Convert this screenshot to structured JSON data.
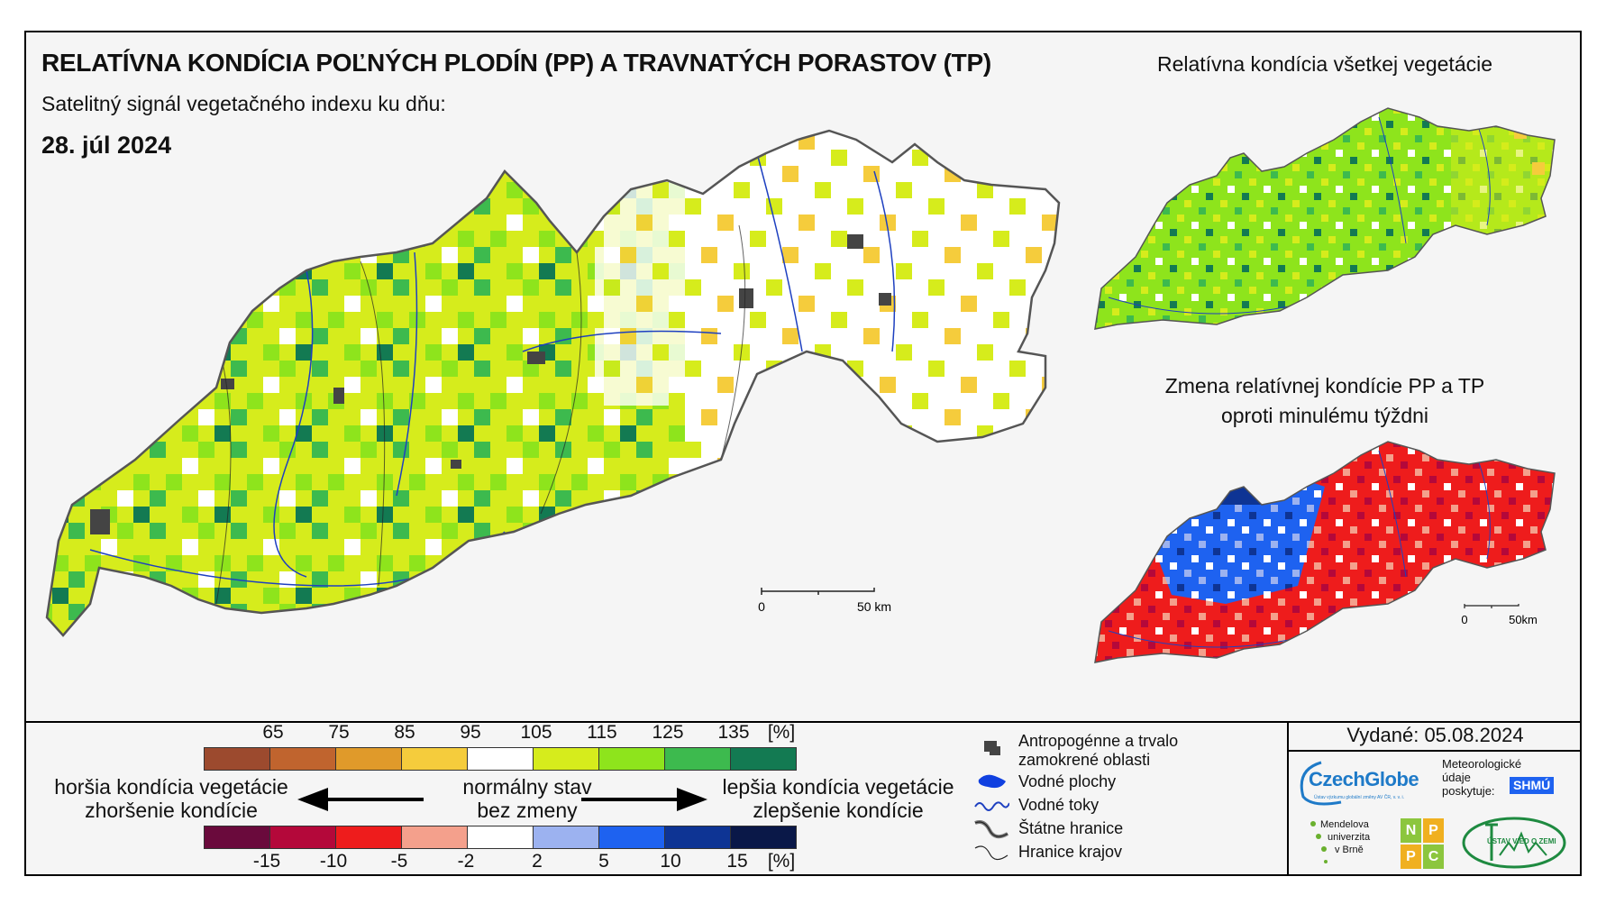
{
  "header": {
    "title": "RELATÍVNA KONDÍCIA POĽNÝCH PLODÍN (PP) A TRAVNATÝCH PORASTOV (TP)",
    "subtitle": "Satelitný signál vegetačného indexu ku dňu:",
    "date": "28. júl 2024"
  },
  "side_maps": {
    "title_all": "Relatívna kondícia všetkej vegetácie",
    "title_change_1": "Zmena relatívnej kondície PP a TP",
    "title_change_2": "oproti minulému týždni"
  },
  "scale_bar": {
    "zero": "0",
    "fifty": "50 km",
    "fifty_small": "50km"
  },
  "legend": {
    "condition_ticks": [
      "65",
      "75",
      "85",
      "95",
      "105",
      "115",
      "125",
      "135",
      "[%]"
    ],
    "condition_colors": [
      "#9c4a2e",
      "#c0642e",
      "#e09a2a",
      "#f5cc3c",
      "#ffffff",
      "#d6ec1c",
      "#8ee41c",
      "#3dba4e",
      "#137a52"
    ],
    "change_ticks": [
      "-15",
      "-10",
      "-5",
      "-2",
      "2",
      "5",
      "10",
      "15",
      "[%]"
    ],
    "change_colors": [
      "#6a0a3c",
      "#b4083a",
      "#ee1c1c",
      "#f4a08c",
      "#ffffff",
      "#9cb2f0",
      "#1e62f0",
      "#0e3494",
      "#0a1848"
    ],
    "worse_1": "horšia kondícia vegetácie",
    "worse_2": "zhoršenie kondície",
    "normal_1": "normálny stav",
    "normal_2": "bez zmeny",
    "better_1": "lepšia kondícia vegetácie",
    "better_2": "zlepšenie kondície"
  },
  "symbols": {
    "urban": "Antropogénne a trvalo",
    "urban_2": "zamokrené oblasti",
    "water_bodies": "Vodné plochy",
    "rivers": "Vodné toky",
    "state_border": "Štátne hranice",
    "region_border": "Hranice krajov"
  },
  "issued": "Vydané: 05.08.2024",
  "logos": {
    "czechglobe": "CzechGlobe",
    "czechglobe_sub": "Ústav výzkumu globální změny AV ČR, v. v. i.",
    "shmu_text_1": "Meteorologické",
    "shmu_text_2": "údaje",
    "shmu_text_3": "poskytuje:",
    "shmu": "SHMÚ",
    "mendel_1": "Mendelova",
    "mendel_2": "univerzita",
    "mendel_3": "v Brně",
    "nppc": [
      "N",
      "P",
      "P",
      "C"
    ],
    "uvz": "ÚSTAV VIED O ZEMI"
  },
  "colors": {
    "green_dark": "#137a52",
    "green": "#3dba4e",
    "green_light": "#8ee41c",
    "yellow_green": "#d6ec1c",
    "orange": "#f5cc3c",
    "urban": "#444444",
    "water": "#1040e0",
    "red": "#ee1c1c",
    "blue": "#1e62f0"
  }
}
